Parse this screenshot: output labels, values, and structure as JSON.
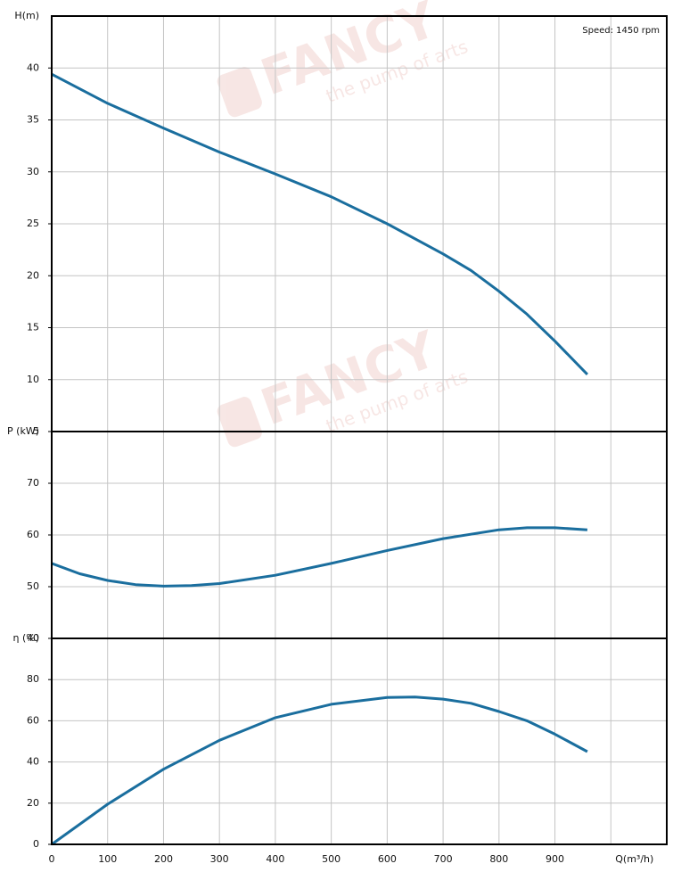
{
  "chart_data": [
    {
      "type": "line",
      "y_label": "H(m)",
      "annotation": "Speed: 1450 rpm",
      "color": "#1a6e9e",
      "ylim": [
        5,
        45
      ],
      "yticks": [
        5,
        10,
        15,
        20,
        25,
        30,
        35,
        40
      ],
      "grid": true,
      "x": [
        0,
        100,
        200,
        300,
        400,
        500,
        600,
        700,
        750,
        800,
        850,
        900,
        958
      ],
      "values": [
        39.4,
        36.6,
        34.2,
        31.9,
        29.8,
        27.6,
        25.0,
        22.1,
        20.5,
        18.5,
        16.3,
        13.7,
        10.5
      ]
    },
    {
      "type": "line",
      "y_label": "P (kW)",
      "color": "#1a6e9e",
      "ylim": [
        40,
        80
      ],
      "yticks": [
        40,
        50,
        60,
        70
      ],
      "grid": true,
      "x": [
        0,
        50,
        100,
        150,
        200,
        250,
        300,
        400,
        500,
        600,
        700,
        800,
        850,
        900,
        958
      ],
      "values": [
        54.5,
        52.5,
        51.2,
        50.4,
        50.1,
        50.2,
        50.6,
        52.2,
        54.5,
        57.0,
        59.3,
        61.0,
        61.4,
        61.4,
        61.0
      ]
    },
    {
      "type": "line",
      "y_label": "η (%)",
      "color": "#1a6e9e",
      "ylim": [
        0,
        100
      ],
      "yticks": [
        0,
        20,
        40,
        60,
        80
      ],
      "grid": true,
      "xlim": [
        0,
        1100
      ],
      "xticks": [
        0,
        100,
        200,
        300,
        400,
        500,
        600,
        700,
        800,
        900,
        {
          "value": 1000,
          "label": "Q(m³/h)"
        }
      ],
      "x": [
        0,
        100,
        200,
        300,
        400,
        500,
        600,
        650,
        700,
        750,
        800,
        850,
        900,
        958
      ],
      "values": [
        0,
        19.5,
        36.5,
        50.5,
        61.5,
        68,
        71.3,
        71.5,
        70.5,
        68.5,
        64.5,
        60,
        53.5,
        45
      ]
    }
  ],
  "watermark": {
    "name": "FANCY",
    "tagline": "the pump of arts"
  }
}
